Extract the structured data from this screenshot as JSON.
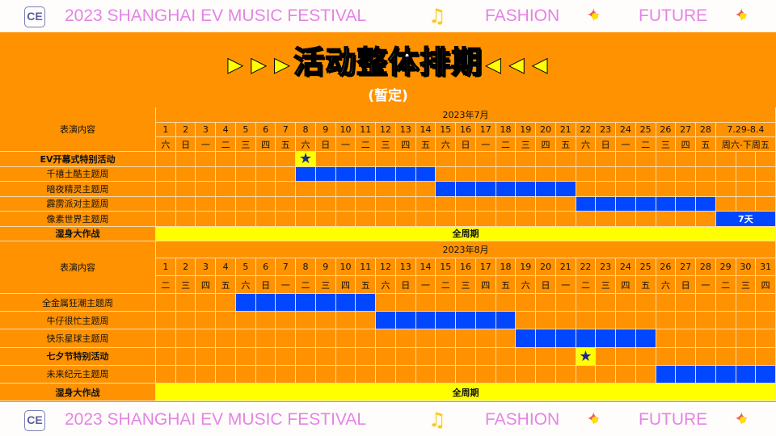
{
  "banner": {
    "title": "2023 SHANGHAI EV MUSIC FESTIVAL",
    "fashion": "FASHION",
    "future": "FUTURE",
    "logo": "CE",
    "icons": [
      "ce-logo-icon",
      "music-note-icon",
      "sparkle-icon"
    ]
  },
  "header": {
    "title": "活动整体排期",
    "subtitle": "(暂定)"
  },
  "colors": {
    "background": "#ff9200",
    "bar": "#0047ff",
    "highlight": "#ffff00",
    "star": "#1a2a8a",
    "banner_text": "#e484e6"
  },
  "july": {
    "month": "2023年7月",
    "content_header": "表演内容",
    "days": [
      "1",
      "2",
      "3",
      "4",
      "5",
      "6",
      "7",
      "8",
      "9",
      "10",
      "11",
      "12",
      "13",
      "14",
      "15",
      "16",
      "17",
      "18",
      "19",
      "20",
      "21",
      "22",
      "23",
      "24",
      "25",
      "26",
      "27",
      "28"
    ],
    "weekdays": [
      "六",
      "日",
      "一",
      "二",
      "三",
      "四",
      "五",
      "六",
      "日",
      "一",
      "二",
      "三",
      "四",
      "五",
      "六",
      "日",
      "一",
      "二",
      "三",
      "四",
      "五",
      "六",
      "日",
      "一",
      "二",
      "三",
      "四",
      "五"
    ],
    "extra_day": "7.29-8.4",
    "extra_weekday": "周六-下周五",
    "rows": [
      {
        "label": "EV开幕式特别活动",
        "bold": true,
        "star": 8
      },
      {
        "label": "千禧土酷主题周",
        "bold": false,
        "start": 8,
        "end": 14
      },
      {
        "label": "暗夜精灵主题周",
        "bold": false,
        "start": 15,
        "end": 21
      },
      {
        "label": "霹雳派对主题周",
        "bold": false,
        "start": 22,
        "end": 28
      },
      {
        "label": "像素世界主题周",
        "bold": false,
        "start": 29,
        "end": 31,
        "text": "7天"
      },
      {
        "label": "湿身大作战",
        "bold": true,
        "full": "全周期"
      }
    ]
  },
  "august": {
    "month": "2023年8月",
    "content_header": "表演内容",
    "days": [
      "1",
      "2",
      "3",
      "4",
      "5",
      "6",
      "7",
      "8",
      "9",
      "10",
      "11",
      "12",
      "13",
      "14",
      "15",
      "16",
      "17",
      "18",
      "19",
      "20",
      "21",
      "22",
      "23",
      "24",
      "25",
      "26",
      "27",
      "28",
      "29",
      "30",
      "31"
    ],
    "weekdays": [
      "二",
      "三",
      "四",
      "五",
      "六",
      "日",
      "一",
      "二",
      "三",
      "四",
      "五",
      "六",
      "日",
      "一",
      "二",
      "三",
      "四",
      "五",
      "六",
      "日",
      "一",
      "二",
      "三",
      "四",
      "五",
      "六",
      "日",
      "一",
      "二",
      "三",
      "四"
    ],
    "rows": [
      {
        "label": "全金属狂潮主题周",
        "bold": false,
        "start": 5,
        "end": 11
      },
      {
        "label": "牛仔很忙主题周",
        "bold": false,
        "start": 12,
        "end": 18
      },
      {
        "label": "快乐星球主题周",
        "bold": false,
        "start": 19,
        "end": 25
      },
      {
        "label": "七夕节特别活动",
        "bold": true,
        "star": 22
      },
      {
        "label": "未来纪元主题周",
        "bold": false,
        "start": 26,
        "end": 31
      },
      {
        "label": "湿身大作战",
        "bold": true,
        "full": "全周期"
      }
    ]
  }
}
